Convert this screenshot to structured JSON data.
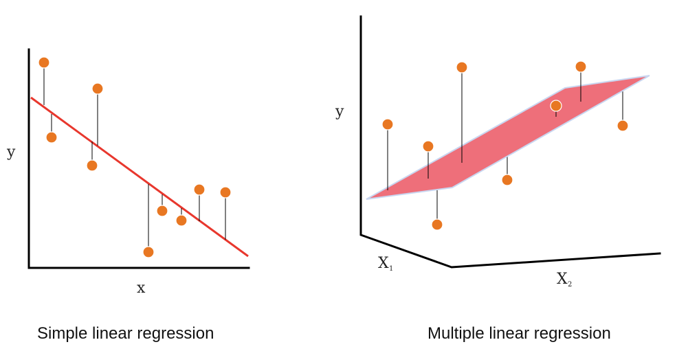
{
  "left_panel": {
    "y_label": "y",
    "x_label": "x",
    "caption": "Simple linear regression"
  },
  "right_panel": {
    "y_label": "y",
    "x1_label": "X",
    "x1_sub": "1",
    "x2_label": "X",
    "x2_sub": "2",
    "caption": "Multiple linear regression"
  },
  "colors": {
    "point": "#e87722",
    "fit_line": "#e8372d",
    "plane": "#ee6f7a",
    "axis": "#000000"
  }
}
